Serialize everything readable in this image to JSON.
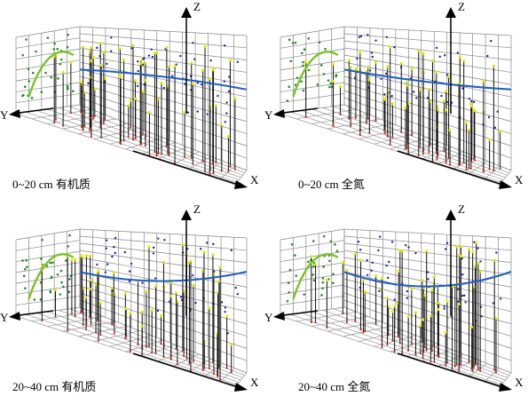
{
  "panels": [
    {
      "label": "0~20 cm 有机质",
      "x_axis": "X",
      "y_axis": "Y",
      "z_axis": "Z"
    },
    {
      "label": "0~20 cm 全氮",
      "x_axis": "X",
      "y_axis": "Y",
      "z_axis": "Z"
    },
    {
      "label": "20~40 cm 有机质",
      "x_axis": "X",
      "y_axis": "Y",
      "z_axis": "Z"
    },
    {
      "label": "20~40 cm 全氮",
      "x_axis": "X",
      "y_axis": "Y",
      "z_axis": "Z"
    }
  ]
}
